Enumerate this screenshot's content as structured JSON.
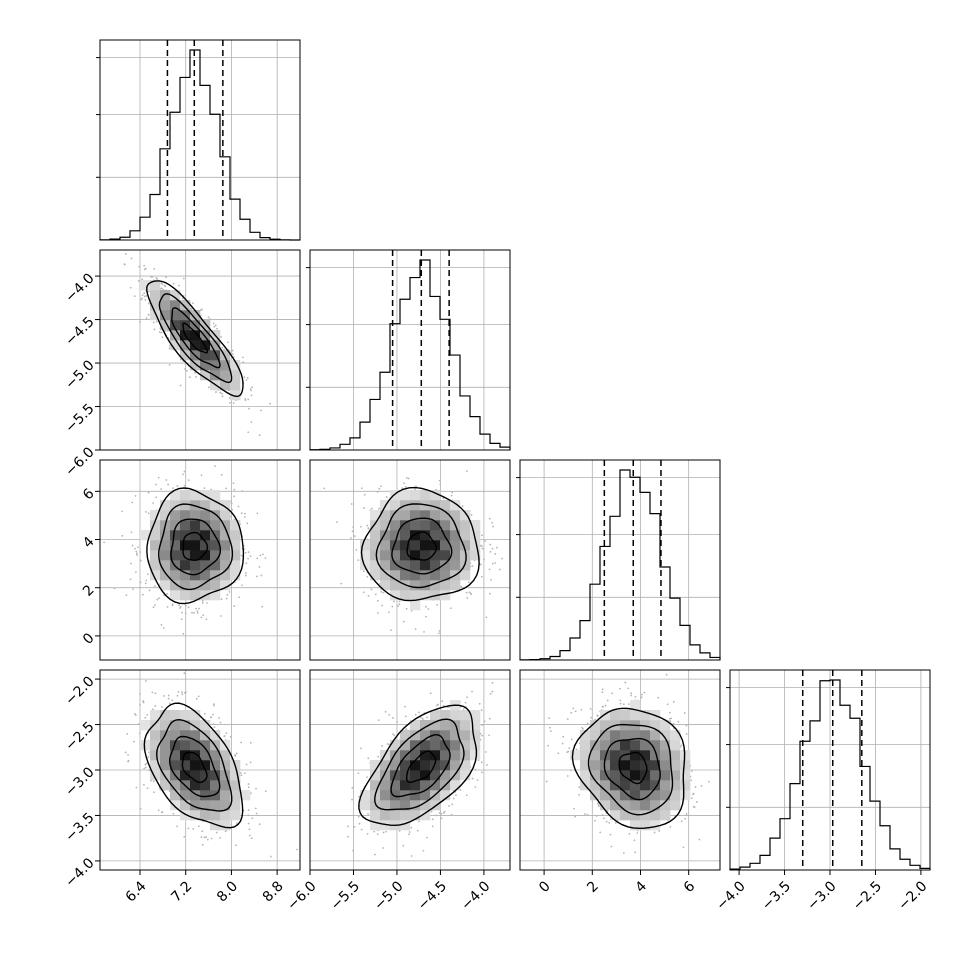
{
  "chart_data": {
    "type": "corner",
    "variables": [
      "",
      "",
      "",
      ""
    ],
    "ranges": [
      [
        5.7,
        9.2
      ],
      [
        -6.0,
        -3.7
      ],
      [
        -1.0,
        7.3
      ],
      [
        -4.1,
        -1.9
      ]
    ],
    "ticks": [
      [
        "6.4",
        "7.2",
        "8.0",
        "8.8"
      ],
      [
        "-6.0",
        "-5.5",
        "-5.0",
        "-4.5",
        "-4.0"
      ],
      [
        "0",
        "2",
        "4",
        "6"
      ],
      [
        "-4.0",
        "-3.5",
        "-3.0",
        "-2.5",
        "-2.0"
      ]
    ],
    "tick_values": [
      [
        6.4,
        7.2,
        8.0,
        8.8
      ],
      [
        -6.0,
        -5.5,
        -5.0,
        -4.5,
        -4.0
      ],
      [
        0,
        2,
        4,
        6
      ],
      [
        -4.0,
        -3.5,
        -3.0,
        -2.5,
        -2.0
      ]
    ],
    "means": [
      7.35,
      -4.72,
      3.7,
      -2.97
    ],
    "stds": [
      0.42,
      0.33,
      1.15,
      0.33
    ],
    "quantiles": [
      [
        6.88,
        7.35,
        7.85
      ],
      [
        -5.05,
        -4.72,
        -4.4
      ],
      [
        2.5,
        3.7,
        4.85
      ],
      [
        -3.3,
        -2.97,
        -2.65
      ]
    ],
    "correlations": {
      "0-1": -0.85,
      "0-2": 0.0,
      "1-2": 0.0,
      "0-3": -0.45,
      "1-3": 0.55,
      "2-3": -0.15
    },
    "grid": true,
    "colors": {
      "contour": "#000000",
      "scatter": "#b5b5b5",
      "grid": "#b0b0b0",
      "fill_dark": "#000000"
    }
  }
}
